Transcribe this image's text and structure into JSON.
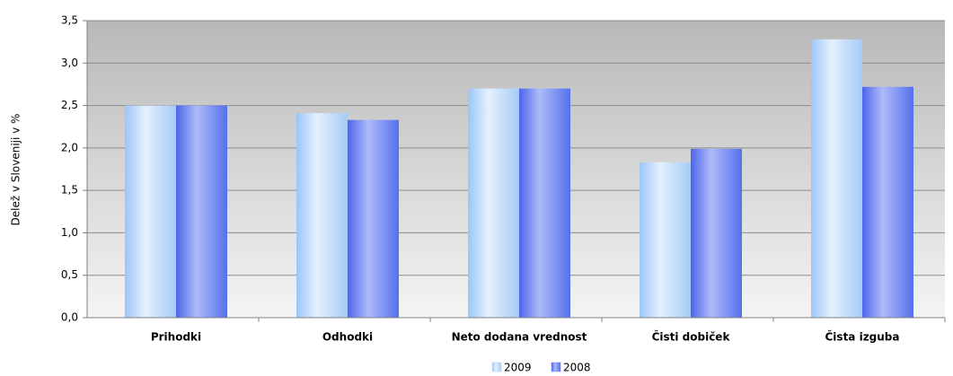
{
  "chart_data": {
    "type": "bar",
    "y_label": "Delež v Sloveniji v %",
    "categories": [
      "Prihodki",
      "Odhodki",
      "Neto dodana vrednost",
      "Čisti dobiček",
      "Čista izguba"
    ],
    "series": [
      {
        "name": "2009",
        "color": "#b3d4fb",
        "values": [
          2.5,
          2.41,
          2.7,
          1.83,
          3.28
        ]
      },
      {
        "name": "2008",
        "color": "#6b82f0",
        "values": [
          2.5,
          2.33,
          2.7,
          1.99,
          2.72
        ]
      }
    ],
    "ylim": [
      0,
      3.5
    ],
    "yticks": [
      {
        "value": 0,
        "label": "0,0"
      },
      {
        "value": 0.5,
        "label": "0,5"
      },
      {
        "value": 1,
        "label": "1,0"
      },
      {
        "value": 1.5,
        "label": "1,5"
      },
      {
        "value": 2,
        "label": "2,0"
      },
      {
        "value": 2.5,
        "label": "2,5"
      },
      {
        "value": 3,
        "label": "3,0"
      },
      {
        "value": 3.5,
        "label": "3,5"
      }
    ],
    "grid": true,
    "legend": "bottom"
  }
}
